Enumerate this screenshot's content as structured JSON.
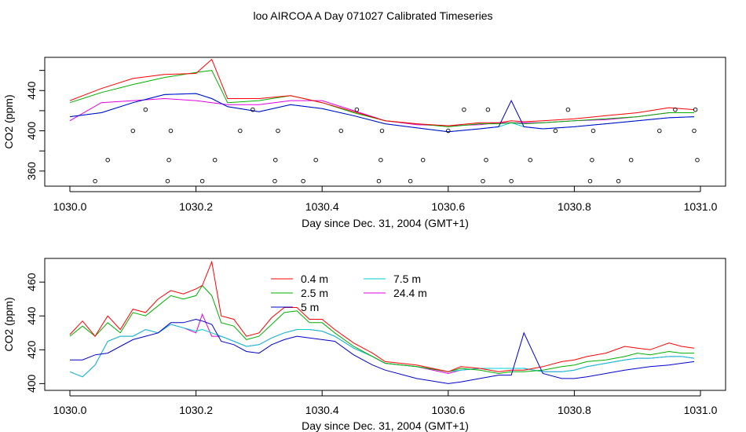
{
  "title": "loo AIRCOA A  Day 071027  Calibrated Timeseries",
  "colors": {
    "0.4 m": "#ff0000",
    "2.5 m": "#00b000",
    "5 m": "#0000cc",
    "7.5 m": "#00d0d0",
    "24.4 m": "#e000e0",
    "points": "#000000"
  },
  "chart_data": [
    {
      "type": "line",
      "title": "",
      "xlabel": "Day since Dec. 31, 2004 (GMT+1)",
      "ylabel": "CO2 (ppm)",
      "xlim": [
        1030.0,
        1031.0
      ],
      "ylim": [
        345,
        473
      ],
      "xticks": [
        "1030.0",
        "1030.2",
        "1030.4",
        "1030.6",
        "1030.8",
        "1031.0"
      ],
      "yticks": [
        "360",
        "400",
        "440"
      ],
      "grid": false,
      "legend": "none",
      "x": [
        1030.0,
        1030.05,
        1030.1,
        1030.15,
        1030.2,
        1030.225,
        1030.25,
        1030.3,
        1030.35,
        1030.4,
        1030.45,
        1030.5,
        1030.55,
        1030.6,
        1030.65,
        1030.68,
        1030.7,
        1030.72,
        1030.75,
        1030.8,
        1030.85,
        1030.9,
        1030.95,
        1030.99
      ],
      "series": [
        {
          "name": "0.4 m",
          "values": [
            430,
            442,
            452,
            456,
            457,
            471,
            432,
            432,
            435,
            428,
            419,
            410,
            407,
            405,
            408,
            408,
            410,
            409,
            410,
            412,
            415,
            418,
            423,
            421
          ]
        },
        {
          "name": "2.5 m",
          "values": [
            428,
            438,
            446,
            453,
            458,
            460,
            428,
            430,
            435,
            428,
            418,
            410,
            407,
            404,
            407,
            407,
            408,
            407,
            408,
            410,
            412,
            414,
            418,
            418
          ]
        },
        {
          "name": "5 m",
          "values": [
            414,
            418,
            428,
            436,
            437,
            432,
            424,
            419,
            426,
            422,
            415,
            407,
            403,
            399,
            402,
            404,
            430,
            404,
            402,
            404,
            407,
            410,
            413,
            414
          ]
        },
        {
          "name": "7.5 m",
          "values": [
            414,
            418,
            428,
            436,
            437,
            432,
            424,
            419,
            426,
            422,
            415,
            407,
            403,
            399,
            402,
            404,
            408,
            404,
            402,
            404,
            407,
            410,
            413,
            414
          ]
        },
        {
          "name": "24.4 m",
          "values": [
            410,
            428,
            430,
            432,
            430,
            428,
            426,
            426,
            430,
            430,
            420,
            410,
            406,
            405,
            406,
            408,
            408,
            408,
            408,
            410,
            411,
            414,
            418,
            418
          ]
        }
      ],
      "points": {
        "x": [
          1030.04,
          1030.06,
          1030.1,
          1030.12,
          1030.155,
          1030.157,
          1030.16,
          1030.21,
          1030.23,
          1030.27,
          1030.29,
          1030.325,
          1030.326,
          1030.33,
          1030.37,
          1030.39,
          1030.43,
          1030.455,
          1030.49,
          1030.493,
          1030.495,
          1030.54,
          1030.56,
          1030.6,
          1030.625,
          1030.655,
          1030.66,
          1030.663,
          1030.7,
          1030.73,
          1030.77,
          1030.79,
          1030.825,
          1030.828,
          1030.83,
          1030.87,
          1030.89,
          1030.935,
          1030.96,
          1030.99,
          1030.992,
          1030.995
        ],
        "y": [
          350,
          371,
          400,
          421,
          350,
          371,
          400,
          350,
          371,
          400,
          421,
          350,
          371,
          400,
          350,
          371,
          400,
          421,
          350,
          371,
          400,
          350,
          371,
          400,
          421,
          350,
          371,
          421,
          350,
          371,
          400,
          421,
          350,
          371,
          400,
          350,
          371,
          400,
          421,
          400,
          421,
          371
        ]
      }
    },
    {
      "type": "line",
      "title": "",
      "xlabel": "Day since Dec. 31, 2004 (GMT+1)",
      "ylabel": "CO2 (ppm)",
      "xlim": [
        1030.0,
        1031.0
      ],
      "ylim": [
        396,
        474
      ],
      "xticks": [
        "1030.0",
        "1030.2",
        "1030.4",
        "1030.6",
        "1030.8",
        "1031.0"
      ],
      "yticks": [
        "400",
        "420",
        "440",
        "460"
      ],
      "grid": false,
      "legend": "top-left",
      "legend_entries": [
        "0.4 m",
        "2.5 m",
        "5 m",
        "7.5 m",
        "24.4 m"
      ],
      "x": [
        1030.0,
        1030.02,
        1030.04,
        1030.06,
        1030.08,
        1030.1,
        1030.12,
        1030.14,
        1030.16,
        1030.18,
        1030.2,
        1030.21,
        1030.225,
        1030.24,
        1030.26,
        1030.28,
        1030.3,
        1030.32,
        1030.34,
        1030.36,
        1030.38,
        1030.4,
        1030.42,
        1030.45,
        1030.48,
        1030.5,
        1030.55,
        1030.6,
        1030.62,
        1030.65,
        1030.68,
        1030.7,
        1030.72,
        1030.75,
        1030.78,
        1030.8,
        1030.82,
        1030.85,
        1030.88,
        1030.9,
        1030.92,
        1030.95,
        1030.97,
        1030.99
      ],
      "series": [
        {
          "name": "0.4 m",
          "values": [
            429,
            437,
            428,
            440,
            432,
            444,
            442,
            450,
            455,
            453,
            456,
            458,
            472,
            440,
            438,
            428,
            430,
            439,
            445,
            445,
            438,
            438,
            432,
            424,
            418,
            413,
            411,
            407,
            410,
            409,
            407,
            408,
            408,
            410,
            413,
            414,
            416,
            418,
            422,
            421,
            420,
            424,
            422,
            421
          ]
        },
        {
          "name": "2.5 m",
          "values": [
            428,
            434,
            428,
            436,
            430,
            442,
            440,
            446,
            452,
            450,
            452,
            458,
            452,
            436,
            434,
            426,
            428,
            435,
            442,
            443,
            436,
            436,
            430,
            422,
            416,
            412,
            410,
            407,
            409,
            408,
            406,
            407,
            407,
            408,
            410,
            411,
            413,
            414,
            416,
            418,
            417,
            419,
            418,
            418
          ]
        },
        {
          "name": "5 m",
          "values": [
            414,
            414,
            417,
            418,
            422,
            426,
            428,
            430,
            436,
            436,
            438,
            437,
            435,
            425,
            423,
            419,
            418,
            423,
            426,
            428,
            427,
            426,
            425,
            417,
            411,
            408,
            403,
            400,
            401,
            403,
            405,
            405,
            430,
            406,
            403,
            403,
            404,
            406,
            408,
            409,
            410,
            411,
            412,
            413
          ]
        },
        {
          "name": "7.5 m",
          "values": [
            407,
            404,
            411,
            425,
            428,
            428,
            432,
            430,
            435,
            433,
            431,
            432,
            430,
            428,
            425,
            422,
            423,
            427,
            430,
            432,
            432,
            431,
            428,
            421,
            416,
            412,
            410,
            407,
            408,
            409,
            409,
            409,
            409,
            407,
            407,
            408,
            410,
            412,
            414,
            415,
            415,
            416,
            416,
            415
          ]
        },
        {
          "name": "24.4 m",
          "values": [
            407,
            404,
            411,
            425,
            428,
            428,
            432,
            430,
            435,
            433,
            430,
            441,
            428,
            428,
            425,
            422,
            423,
            427,
            430,
            432,
            432,
            431,
            428,
            421,
            416,
            412,
            410,
            406,
            408,
            409,
            409,
            409,
            409,
            407,
            407,
            408,
            410,
            412,
            414,
            415,
            415,
            416,
            416,
            415
          ]
        }
      ]
    }
  ]
}
